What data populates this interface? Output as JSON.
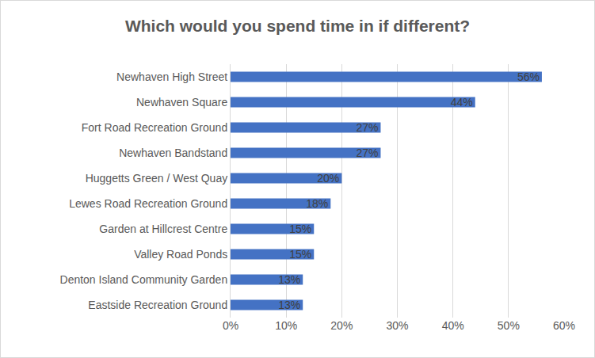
{
  "chart_data": {
    "type": "bar",
    "orientation": "horizontal",
    "title": "Which would you spend time in if different?",
    "categories": [
      "Newhaven High Street",
      "Newhaven Square",
      "Fort Road Recreation Ground",
      "Newhaven Bandstand",
      "Huggetts Green / West Quay",
      "Lewes Road Recreation Ground",
      "Garden at Hillcrest Centre",
      "Valley Road Ponds",
      "Denton Island Community Garden",
      "Eastside Recreation Ground"
    ],
    "values": [
      56,
      44,
      27,
      27,
      20,
      18,
      15,
      15,
      13,
      13
    ],
    "value_labels": [
      "56%",
      "44%",
      "27%",
      "27%",
      "20%",
      "18%",
      "15%",
      "15%",
      "13%",
      "13%"
    ],
    "data_labels": true,
    "color": "#4472c4",
    "xlim": [
      0,
      60
    ],
    "xticks": [
      {
        "value": 0,
        "label": "0%"
      },
      {
        "value": 10,
        "label": "10%"
      },
      {
        "value": 20,
        "label": "20%"
      },
      {
        "value": 30,
        "label": "30%"
      },
      {
        "value": 40,
        "label": "40%"
      },
      {
        "value": 50,
        "label": "50%"
      },
      {
        "value": 60,
        "label": "60%"
      }
    ],
    "grid": true
  }
}
